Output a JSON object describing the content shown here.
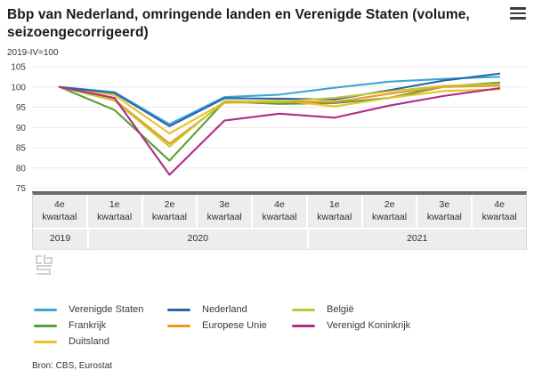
{
  "header": {
    "title": "Bbp van Nederland, omringende landen en Verenigde Staten (volume, seizoengecorrigeerd)",
    "subtitle": "2019-IV=100",
    "menu_icon": "hamburger-icon"
  },
  "chart_data": {
    "type": "line",
    "title": "Bbp van Nederland, omringende landen en Verenigde Staten (volume, seizoengecorrigeerd)",
    "unit_label": "2019-IV=100",
    "x_labels": [
      "4e kwartaal",
      "1e kwartaal",
      "2e kwartaal",
      "3e kwartaal",
      "4e kwartaal",
      "1e kwartaal",
      "2e kwartaal",
      "3e kwartaal",
      "4e kwartaal"
    ],
    "year_groups": [
      {
        "label": "2019",
        "cols": 1
      },
      {
        "label": "2020",
        "cols": 4
      },
      {
        "label": "2021",
        "cols": 4
      }
    ],
    "y_ticks": [
      105,
      100,
      95,
      90,
      85,
      80,
      75
    ],
    "ylim": [
      75,
      105
    ],
    "grid": "horizontal",
    "legend_position": "bottom",
    "series": [
      {
        "name": "Verenigde Staten",
        "color": "#3BA5D3",
        "values": [
          100,
          98.7,
          90.8,
          97.5,
          98.1,
          99.8,
          101.3,
          102.0,
          102.5
        ]
      },
      {
        "name": "Frankrijk",
        "color": "#57A038",
        "values": [
          100,
          94.3,
          81.8,
          96.4,
          95.8,
          96.0,
          97.3,
          100.1,
          101.1
        ]
      },
      {
        "name": "Duitsland",
        "color": "#E9C227",
        "values": [
          100,
          98.0,
          88.5,
          96.2,
          96.7,
          95.2,
          97.3,
          99.0,
          99.4
        ]
      },
      {
        "name": "Nederland",
        "color": "#2A65AB",
        "values": [
          100,
          98.5,
          90.3,
          97.2,
          97.1,
          96.9,
          99.2,
          101.6,
          103.3
        ]
      },
      {
        "name": "Europese Unie",
        "color": "#F2971B",
        "values": [
          100,
          96.8,
          86.0,
          96.1,
          96.3,
          96.3,
          98.3,
          100.0,
          100.3
        ]
      },
      {
        "name": "België",
        "color": "#C1CA35",
        "values": [
          100,
          96.6,
          85.3,
          96.5,
          96.4,
          97.3,
          98.9,
          100.3,
          100.7
        ]
      },
      {
        "name": "Verenigd Koninkrijk",
        "color": "#B02C87",
        "values": [
          100,
          97.3,
          78.3,
          91.7,
          93.4,
          92.4,
          95.4,
          97.8,
          99.7
        ]
      }
    ],
    "legend_columns": [
      [
        "Verenigde Staten",
        "Frankrijk",
        "Duitsland"
      ],
      [
        "Nederland",
        "Europese Unie"
      ],
      [
        "België",
        "Verenigd Koninkrijk"
      ]
    ]
  },
  "footer": {
    "source": "Bron: CBS, Eurostat"
  },
  "style": {
    "gridline_color": "#E8E8E8",
    "axis_label_color": "#3F3F3F",
    "band_bg": "#EDEDED",
    "band_top_border": "#6A6A6A"
  }
}
